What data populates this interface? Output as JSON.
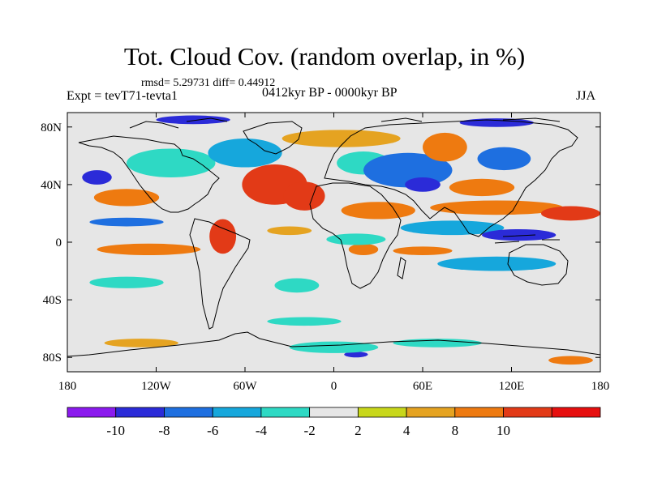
{
  "title": "Tot. Cloud Cov. (random overlap, in %)",
  "stats_line": "rmsd= 5.29731 diff= 0.44912",
  "experiment_label": "Expt = tevT71-tevta1",
  "period_label": "0412kyr BP - 0000kyr BP",
  "season_label": "JJA",
  "chart_data": {
    "type": "heatmap",
    "title": "Tot. Cloud Cov. (random overlap, in %)",
    "xlabel": "",
    "ylabel": "",
    "x_range": [
      -180,
      180
    ],
    "y_range": [
      -90,
      90
    ],
    "x_ticks": [
      {
        "value": -180,
        "label": "180"
      },
      {
        "value": -120,
        "label": "120W"
      },
      {
        "value": -60,
        "label": "60W"
      },
      {
        "value": 0,
        "label": "0"
      },
      {
        "value": 60,
        "label": "60E"
      },
      {
        "value": 120,
        "label": "120E"
      },
      {
        "value": 180,
        "label": "180"
      }
    ],
    "y_ticks": [
      {
        "value": 80,
        "label": "80N"
      },
      {
        "value": 40,
        "label": "40N"
      },
      {
        "value": 0,
        "label": "0"
      },
      {
        "value": -40,
        "label": "40S"
      },
      {
        "value": -80,
        "label": "80S"
      }
    ],
    "colorbar": {
      "levels": [
        -10,
        -8,
        -6,
        -4,
        -2,
        2,
        4,
        8,
        10
      ],
      "labels": [
        "-10",
        "-8",
        "-6",
        "-4",
        "-2",
        "2",
        "4",
        "8",
        "10"
      ],
      "colors": [
        "#8B1AEE",
        "#2B2BD8",
        "#1E6FE0",
        "#16A7DC",
        "#2ED9C4",
        "#E6E6E6",
        "#C8D71B",
        "#E5A321",
        "#EE7A10",
        "#E23A17",
        "#E60F0F"
      ]
    },
    "anomaly_regions": [
      {
        "lon": -40,
        "lat": 40,
        "rx": 22,
        "ry": 14,
        "value": 10
      },
      {
        "lon": -20,
        "lat": 32,
        "rx": 14,
        "ry": 10,
        "value": 10
      },
      {
        "lon": -75,
        "lat": 4,
        "rx": 9,
        "ry": 12,
        "value": 10
      },
      {
        "lon": -140,
        "lat": 31,
        "rx": 22,
        "ry": 6,
        "value": 8
      },
      {
        "lon": -140,
        "lat": 14,
        "rx": 25,
        "ry": 3,
        "value": -8
      },
      {
        "lon": -125,
        "lat": -5,
        "rx": 35,
        "ry": 4,
        "value": 8
      },
      {
        "lon": -140,
        "lat": -28,
        "rx": 25,
        "ry": 4,
        "value": -4
      },
      {
        "lon": -160,
        "lat": 45,
        "rx": 10,
        "ry": 5,
        "value": -10
      },
      {
        "lon": -110,
        "lat": 55,
        "rx": 30,
        "ry": 10,
        "value": -4
      },
      {
        "lon": -60,
        "lat": 62,
        "rx": 25,
        "ry": 10,
        "value": -6
      },
      {
        "lon": -95,
        "lat": 85,
        "rx": 25,
        "ry": 3,
        "value": -10
      },
      {
        "lon": 5,
        "lat": 72,
        "rx": 40,
        "ry": 6,
        "value": 4
      },
      {
        "lon": 20,
        "lat": 55,
        "rx": 18,
        "ry": 8,
        "value": -4
      },
      {
        "lon": 50,
        "lat": 50,
        "rx": 30,
        "ry": 12,
        "value": -8
      },
      {
        "lon": 60,
        "lat": 40,
        "rx": 12,
        "ry": 5,
        "value": -10
      },
      {
        "lon": 75,
        "lat": 66,
        "rx": 15,
        "ry": 10,
        "value": 8
      },
      {
        "lon": 115,
        "lat": 58,
        "rx": 18,
        "ry": 8,
        "value": -8
      },
      {
        "lon": 110,
        "lat": 83,
        "rx": 25,
        "ry": 3,
        "value": -10
      },
      {
        "lon": 100,
        "lat": 38,
        "rx": 22,
        "ry": 6,
        "value": 8
      },
      {
        "lon": 110,
        "lat": 24,
        "rx": 45,
        "ry": 5,
        "value": 8
      },
      {
        "lon": 160,
        "lat": 20,
        "rx": 20,
        "ry": 5,
        "value": 10
      },
      {
        "lon": 80,
        "lat": 10,
        "rx": 35,
        "ry": 5,
        "value": -6
      },
      {
        "lon": 125,
        "lat": 5,
        "rx": 25,
        "ry": 4,
        "value": -10
      },
      {
        "lon": 110,
        "lat": -15,
        "rx": 40,
        "ry": 5,
        "value": -6
      },
      {
        "lon": 30,
        "lat": 22,
        "rx": 25,
        "ry": 6,
        "value": 8
      },
      {
        "lon": 20,
        "lat": -5,
        "rx": 10,
        "ry": 4,
        "value": 8
      },
      {
        "lon": 60,
        "lat": -6,
        "rx": 20,
        "ry": 3,
        "value": 8
      },
      {
        "lon": 15,
        "lat": 2,
        "rx": 20,
        "ry": 4,
        "value": -4
      },
      {
        "lon": -30,
        "lat": 8,
        "rx": 15,
        "ry": 3,
        "value": 4
      },
      {
        "lon": -25,
        "lat": -30,
        "rx": 15,
        "ry": 5,
        "value": -4
      },
      {
        "lon": 15,
        "lat": -78,
        "rx": 8,
        "ry": 2,
        "value": -10
      },
      {
        "lon": 0,
        "lat": -73,
        "rx": 30,
        "ry": 4,
        "value": -4
      },
      {
        "lon": 70,
        "lat": -70,
        "rx": 30,
        "ry": 3,
        "value": -4
      },
      {
        "lon": -130,
        "lat": -70,
        "rx": 25,
        "ry": 3,
        "value": 4
      },
      {
        "lon": 160,
        "lat": -82,
        "rx": 15,
        "ry": 3,
        "value": 8
      },
      {
        "lon": -20,
        "lat": -55,
        "rx": 25,
        "ry": 3,
        "value": -4
      }
    ]
  }
}
